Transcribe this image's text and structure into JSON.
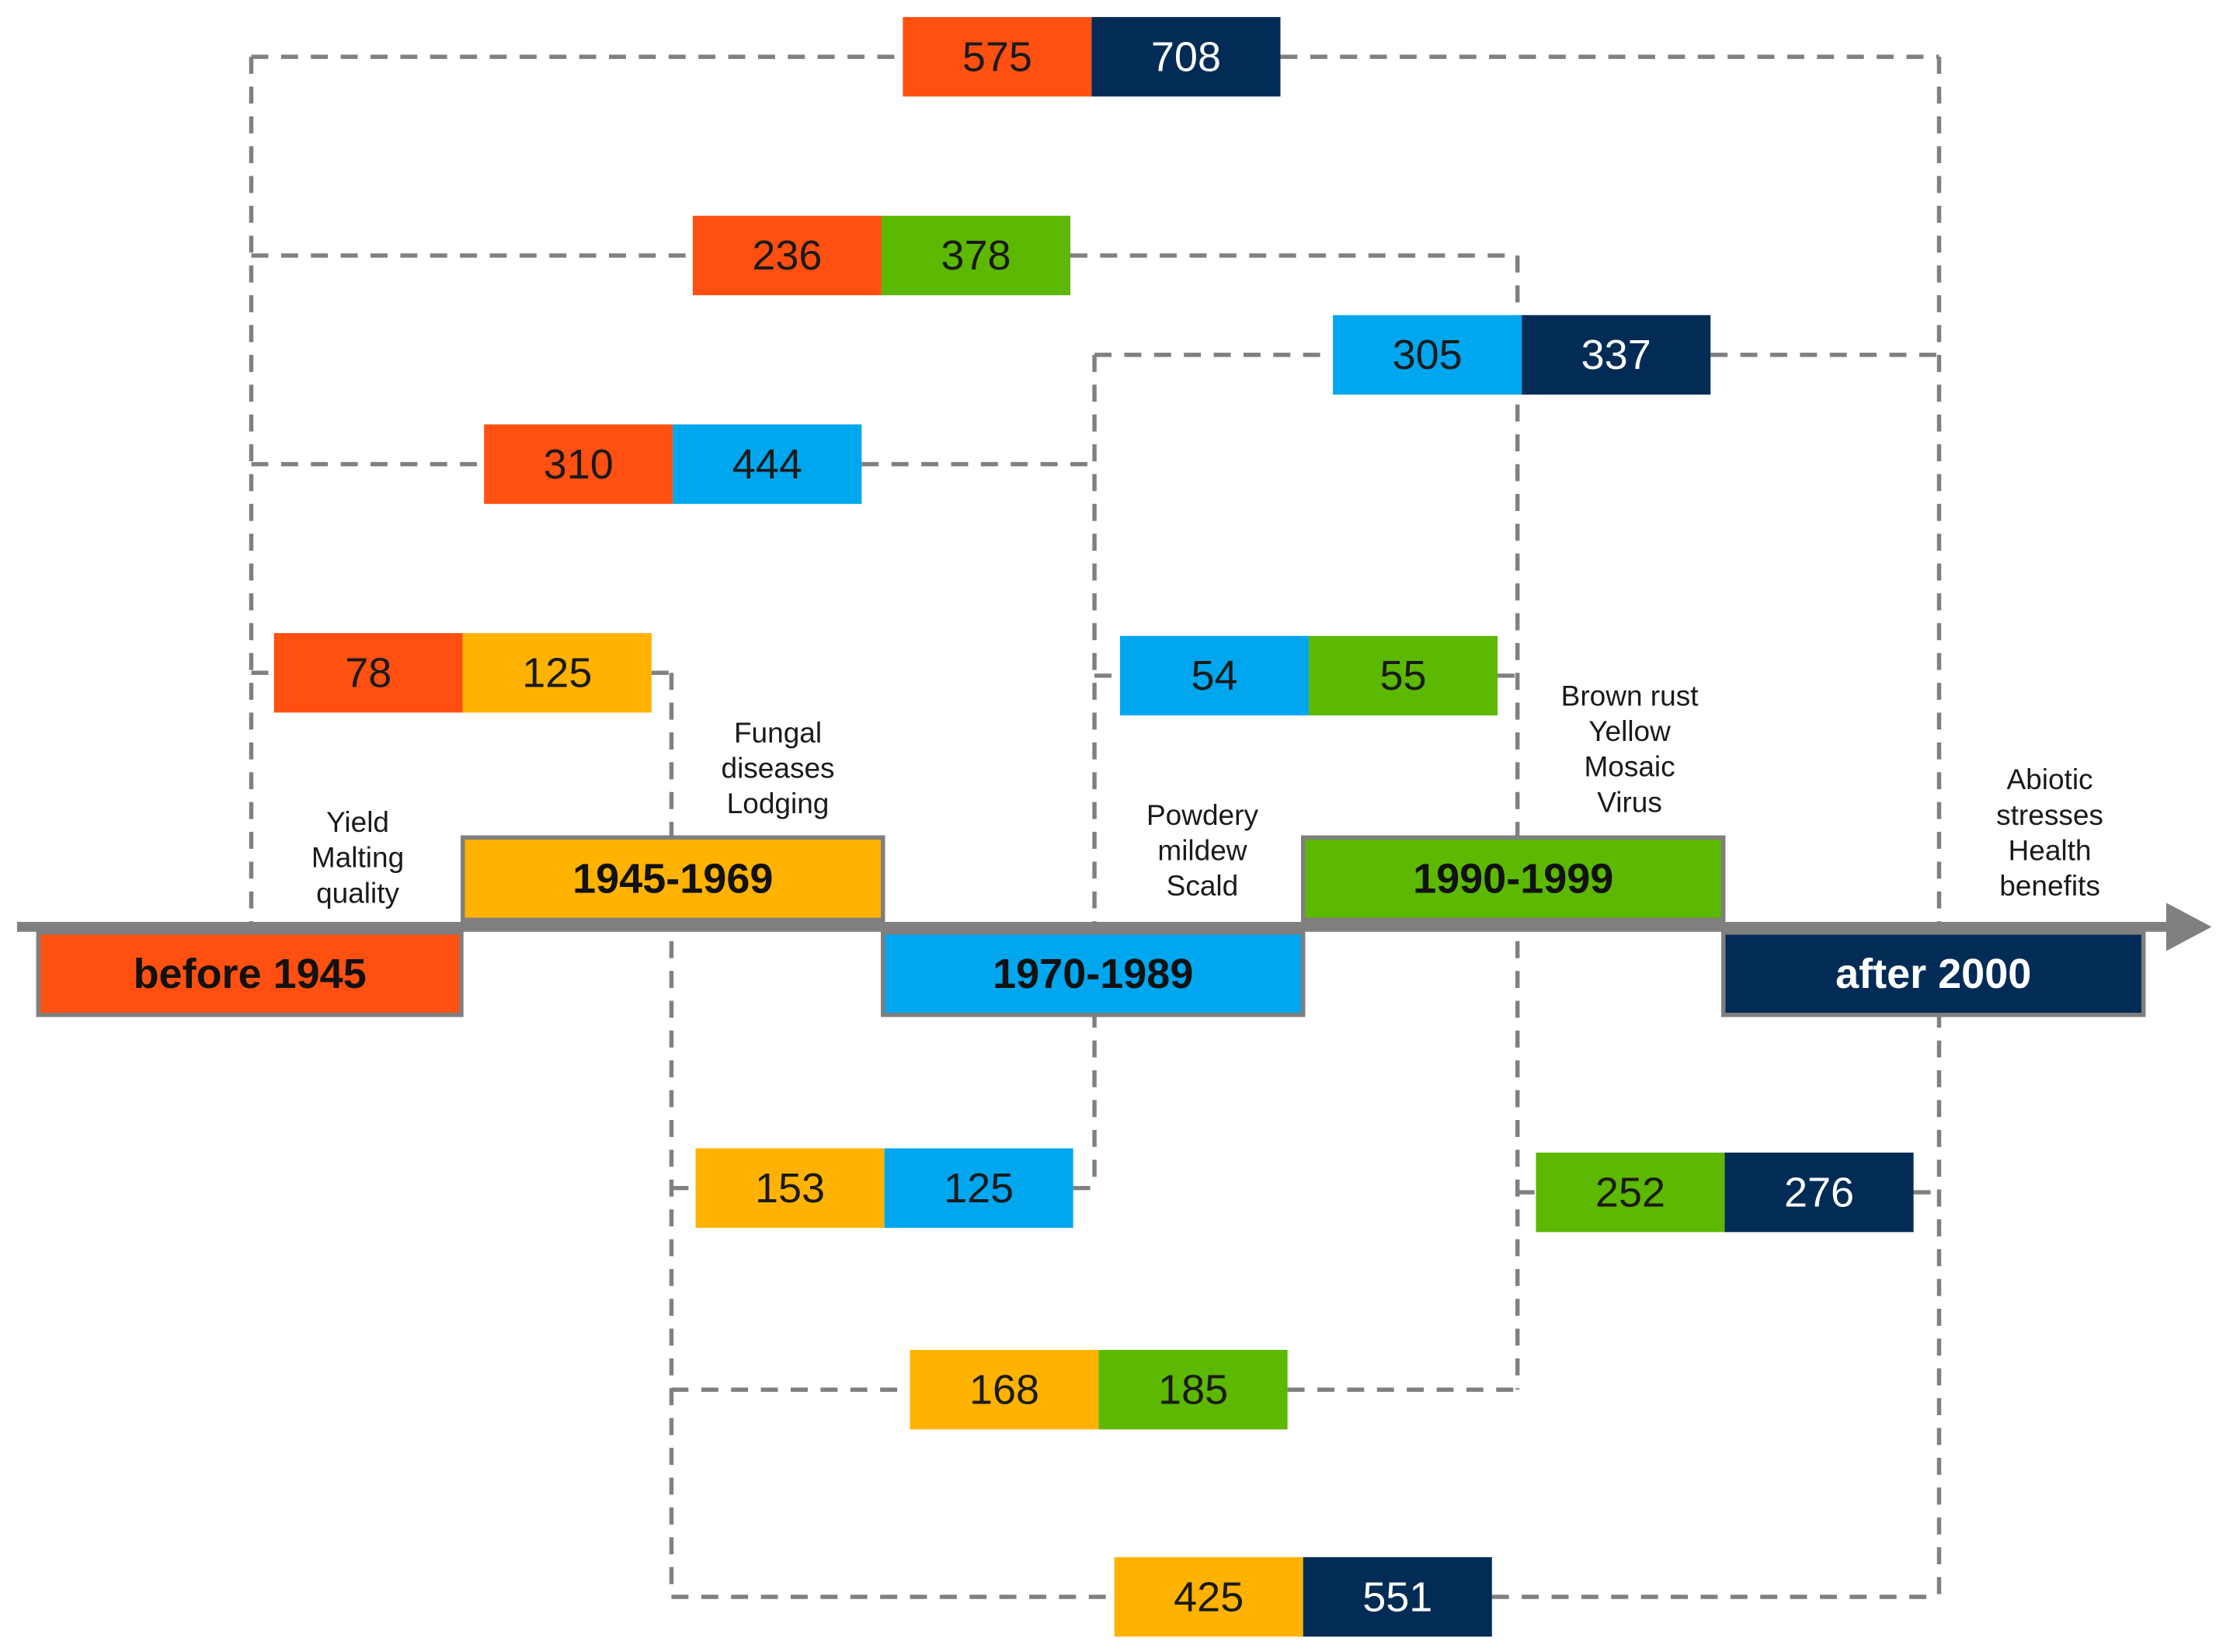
{
  "colors": {
    "before_1945": "#FF5012",
    "1945_1969": "#FFB300",
    "1970_1989": "#00A6EE",
    "1990_1999": "#5CB800",
    "after_2000": "#022C56",
    "axis": "#808080",
    "connector": "#808080"
  },
  "eras": [
    {
      "id": "before_1945",
      "label": "before 1945",
      "text_color": "#111111"
    },
    {
      "id": "1945_1969",
      "label": "1945-1969",
      "text_color": "#111111"
    },
    {
      "id": "1970_1989",
      "label": "1970-1989",
      "text_color": "#111111"
    },
    {
      "id": "1990_1999",
      "label": "1990-1999",
      "text_color": "#111111"
    },
    {
      "id": "after_2000",
      "label": "after 2000",
      "text_color": "#ffffff"
    }
  ],
  "themes": [
    {
      "era": "before_1945",
      "lines": [
        "Yield",
        "Malting",
        "quality"
      ]
    },
    {
      "era": "1945_1969",
      "lines": [
        "Fungal",
        "diseases",
        "Lodging"
      ]
    },
    {
      "era": "1970_1989",
      "lines": [
        "Powdery",
        "mildew",
        "Scald"
      ]
    },
    {
      "era": "1990_1999",
      "lines": [
        "Brown rust",
        "Yellow",
        "Mosaic",
        "Virus"
      ]
    },
    {
      "era": "after_2000",
      "lines": [
        "Abiotic",
        "stresses",
        "Health",
        "benefits"
      ]
    }
  ],
  "pairs": [
    {
      "from": "before_1945",
      "to": "after_2000",
      "left_value": "575",
      "right_value": "708"
    },
    {
      "from": "before_1945",
      "to": "1990_1999",
      "left_value": "236",
      "right_value": "378"
    },
    {
      "from": "1970_1989",
      "to": "after_2000",
      "left_value": "305",
      "right_value": "337"
    },
    {
      "from": "before_1945",
      "to": "1970_1989",
      "left_value": "310",
      "right_value": "444"
    },
    {
      "from": "1970_1989",
      "to": "1990_1999",
      "left_value": "54",
      "right_value": "55"
    },
    {
      "from": "before_1945",
      "to": "1945_1969",
      "left_value": "78",
      "right_value": "125"
    },
    {
      "from": "1945_1969",
      "to": "1970_1989",
      "left_value": "153",
      "right_value": "125"
    },
    {
      "from": "1990_1999",
      "to": "after_2000",
      "left_value": "252",
      "right_value": "276"
    },
    {
      "from": "1945_1969",
      "to": "1990_1999",
      "left_value": "168",
      "right_value": "185"
    },
    {
      "from": "1945_1969",
      "to": "after_2000",
      "left_value": "425",
      "right_value": "551"
    }
  ]
}
